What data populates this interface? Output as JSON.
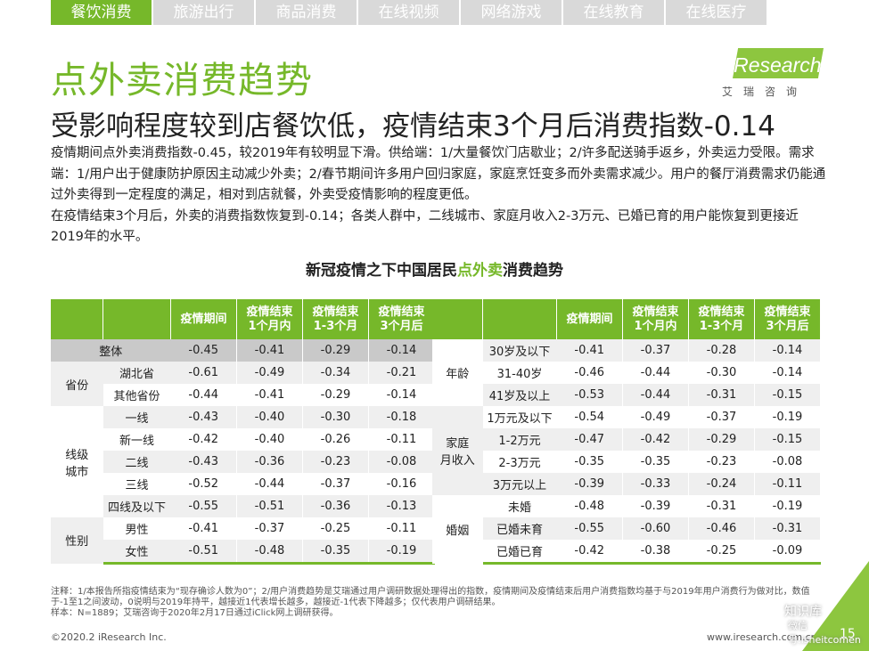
{
  "tabs": [
    {
      "label": "餐饮消费",
      "active": true
    },
    {
      "label": "旅游出行",
      "active": false
    },
    {
      "label": "商品消费",
      "active": false
    },
    {
      "label": "在线视频",
      "active": false
    },
    {
      "label": "网络游戏",
      "active": false
    },
    {
      "label": "在线教育",
      "active": false
    },
    {
      "label": "在线医疗",
      "active": false
    }
  ],
  "title": "点外卖消费趋势",
  "logo": {
    "word": "iResearch",
    "cn": "艾瑞咨询"
  },
  "subtitle": "受影响程度较到店餐饮低，疫情结束3个月后消费指数-0.14",
  "desc": {
    "p1": "疫情期间点外卖消费指数-0.45，较2019年有较明显下滑。供给端：1/大量餐饮门店歇业；2/许多配送骑手返乡，外卖运力受限。需求端：1/用户出于健康防护原因主动减少外卖；2/春节期间许多用户回归家庭，家庭烹饪变多而外卖需求减少。用户的餐厅消费需求仍能通过外卖得到一定程度的满足，相对到店就餐，外卖受疫情影响的程度更低。",
    "p2": "在疫情结束3个月后，外卖的消费指数恢复到-0.14；各类人群中，二线城市、家庭月收入2-3万元、已婚已育的用户能恢复到更接近2019年的水平。"
  },
  "table_title": {
    "pre": "新冠疫情之下中国居民",
    "hl": "点外卖",
    "post": "消费趋势"
  },
  "headers": {
    "h1": "疫情期间",
    "h2a": "疫情结束",
    "h2b": "1个月内",
    "h3a": "疫情结束",
    "h3b": "1-3个月",
    "h4a": "疫情结束",
    "h4b": "3个月后"
  },
  "left": {
    "total": {
      "label": "整体",
      "v": [
        "-0.45",
        "-0.41",
        "-0.29",
        "-0.14"
      ]
    },
    "province": {
      "group": "省份",
      "rows": [
        {
          "label": "湖北省",
          "v": [
            "-0.61",
            "-0.49",
            "-0.34",
            "-0.21"
          ]
        },
        {
          "label": "其他省份",
          "v": [
            "-0.44",
            "-0.41",
            "-0.29",
            "-0.14"
          ]
        }
      ]
    },
    "city": {
      "group_a": "线级",
      "group_b": "城市",
      "rows": [
        {
          "label": "一线",
          "v": [
            "-0.43",
            "-0.40",
            "-0.30",
            "-0.18"
          ]
        },
        {
          "label": "新一线",
          "v": [
            "-0.42",
            "-0.40",
            "-0.26",
            "-0.11"
          ]
        },
        {
          "label": "二线",
          "v": [
            "-0.43",
            "-0.36",
            "-0.23",
            "-0.08"
          ]
        },
        {
          "label": "三线",
          "v": [
            "-0.52",
            "-0.44",
            "-0.37",
            "-0.16"
          ]
        },
        {
          "label": "四线及以下",
          "v": [
            "-0.55",
            "-0.51",
            "-0.36",
            "-0.13"
          ]
        }
      ]
    },
    "gender": {
      "group": "性别",
      "rows": [
        {
          "label": "男性",
          "v": [
            "-0.41",
            "-0.37",
            "-0.25",
            "-0.11"
          ]
        },
        {
          "label": "女性",
          "v": [
            "-0.51",
            "-0.48",
            "-0.35",
            "-0.19"
          ]
        }
      ]
    }
  },
  "right": {
    "age": {
      "group": "年龄",
      "rows": [
        {
          "label": "30岁及以下",
          "v": [
            "-0.41",
            "-0.37",
            "-0.28",
            "-0.14"
          ]
        },
        {
          "label": "31-40岁",
          "v": [
            "-0.46",
            "-0.44",
            "-0.30",
            "-0.14"
          ]
        },
        {
          "label": "41岁及以上",
          "v": [
            "-0.53",
            "-0.44",
            "-0.31",
            "-0.15"
          ]
        }
      ]
    },
    "income": {
      "group_a": "家庭",
      "group_b": "月收入",
      "rows": [
        {
          "label": "1万元及以下",
          "v": [
            "-0.54",
            "-0.49",
            "-0.37",
            "-0.19"
          ]
        },
        {
          "label": "1-2万元",
          "v": [
            "-0.47",
            "-0.42",
            "-0.29",
            "-0.15"
          ]
        },
        {
          "label": "2-3万元",
          "v": [
            "-0.35",
            "-0.35",
            "-0.23",
            "-0.08"
          ]
        },
        {
          "label": "3万元以上",
          "v": [
            "-0.39",
            "-0.33",
            "-0.24",
            "-0.11"
          ]
        }
      ]
    },
    "marriage": {
      "group": "婚姻",
      "rows": [
        {
          "label": "未婚",
          "v": [
            "-0.48",
            "-0.39",
            "-0.31",
            "-0.19"
          ]
        },
        {
          "label": "已婚未育",
          "v": [
            "-0.55",
            "-0.60",
            "-0.46",
            "-0.31"
          ]
        },
        {
          "label": "已婚已育",
          "v": [
            "-0.42",
            "-0.38",
            "-0.25",
            "-0.09"
          ]
        }
      ]
    }
  },
  "note": {
    "l1": "注释：1/本报告所指疫情结束为“现存确诊人数为0”；2/用户消费趋势是艾瑞通过用户调研数据处理得出的指数，疫情期间及疫情结束后用户消费指数均基于与2019年用户消费行为做对比，数值于-1至1之间波动，0说明与2019年持平，越接近1代表增长越多，越接近-1代表下降越多；仅代表用户调研结果。",
    "l2": "样本：N=1889；艾瑞咨询于2020年2月17日通过iClick网上调研获得。"
  },
  "footer": {
    "copyright": "©2020.2 iResearch Inc.",
    "url": "www.iresearch.com.cn",
    "page": "15"
  },
  "watermark": {
    "line1": "知识库",
    "line2": "微信号:isheitcomen"
  },
  "colors": {
    "accent": "#76b82a",
    "header_bg": "#76b82a",
    "shade": "#efefef",
    "total_row": "#c9c9c9"
  }
}
